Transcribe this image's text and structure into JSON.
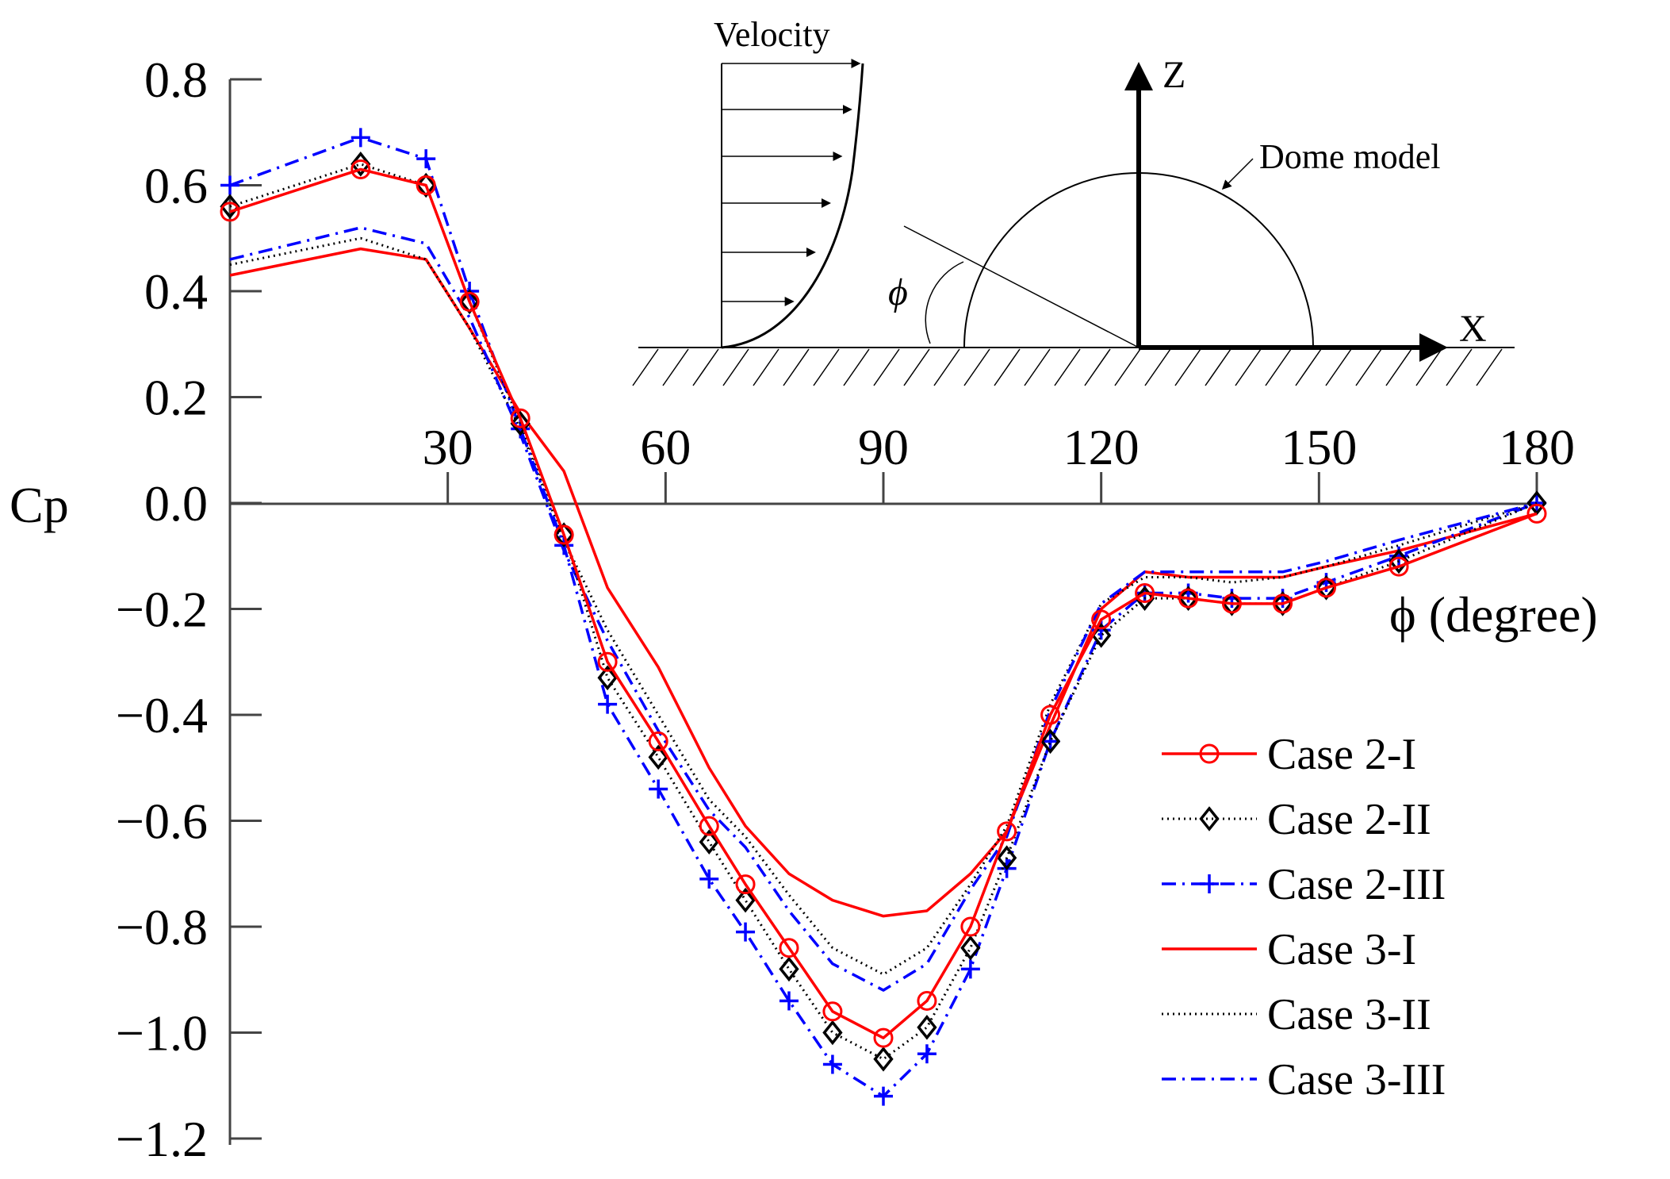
{
  "chart_data": {
    "type": "line",
    "title": "",
    "ylabel": "Cp",
    "xlabel": "ϕ (degree)",
    "xlim": [
      0,
      180
    ],
    "ylim": [
      -1.2,
      0.8
    ],
    "xticks": [
      "30",
      "60",
      "90",
      "120",
      "150",
      "180"
    ],
    "xtick_values": [
      30,
      60,
      90,
      120,
      150,
      180
    ],
    "yticks": [
      "0.8",
      "0.6",
      "0.4",
      "0.2",
      "0.0",
      "−0.2",
      "−0.4",
      "−0.6",
      "−0.8",
      "−1.0",
      "−1.2"
    ],
    "ytick_values": [
      0.8,
      0.6,
      0.4,
      0.2,
      0.0,
      -0.2,
      -0.4,
      -0.6,
      -0.8,
      -1.0,
      -1.2
    ],
    "legend_position": "bottom-right",
    "series": [
      {
        "name": "Case 2-I",
        "color": "#ff0000",
        "dash": "solid",
        "marker": "circle",
        "x": [
          0,
          18,
          27,
          33,
          40,
          46,
          52,
          59,
          66,
          71,
          77,
          83,
          90,
          96,
          102,
          107,
          113,
          120,
          126,
          132,
          138,
          145,
          151,
          161,
          180
        ],
        "y": [
          0.55,
          0.63,
          0.6,
          0.38,
          0.16,
          -0.06,
          -0.3,
          -0.45,
          -0.61,
          -0.72,
          -0.84,
          -0.96,
          -1.01,
          -0.94,
          -0.8,
          -0.62,
          -0.4,
          -0.22,
          -0.17,
          -0.18,
          -0.19,
          -0.19,
          -0.16,
          -0.12,
          -0.02
        ]
      },
      {
        "name": "Case 2-II",
        "color": "#000000",
        "dash": "dotted",
        "marker": "diamond",
        "x": [
          0,
          18,
          27,
          33,
          40,
          46,
          52,
          59,
          66,
          71,
          77,
          83,
          90,
          96,
          102,
          107,
          113,
          120,
          126,
          132,
          138,
          145,
          151,
          161,
          180
        ],
        "y": [
          0.56,
          0.64,
          0.6,
          0.38,
          0.15,
          -0.06,
          -0.33,
          -0.48,
          -0.64,
          -0.75,
          -0.88,
          -1.0,
          -1.05,
          -0.99,
          -0.84,
          -0.67,
          -0.45,
          -0.25,
          -0.18,
          -0.18,
          -0.19,
          -0.19,
          -0.16,
          -0.11,
          0.0
        ]
      },
      {
        "name": "Case 2-III",
        "color": "#0000ff",
        "dash": "dashdot",
        "marker": "plus",
        "x": [
          0,
          18,
          27,
          33,
          40,
          46,
          52,
          59,
          66,
          71,
          77,
          83,
          90,
          96,
          102,
          107,
          113,
          120,
          126,
          132,
          138,
          145,
          151,
          161,
          180
        ],
        "y": [
          0.6,
          0.69,
          0.65,
          0.4,
          0.14,
          -0.08,
          -0.38,
          -0.54,
          -0.71,
          -0.81,
          -0.94,
          -1.06,
          -1.12,
          -1.04,
          -0.88,
          -0.69,
          -0.45,
          -0.24,
          -0.17,
          -0.17,
          -0.18,
          -0.18,
          -0.15,
          -0.1,
          0.0
        ]
      },
      {
        "name": "Case 3-I",
        "color": "#ff0000",
        "dash": "solid",
        "marker": "none",
        "x": [
          0,
          18,
          27,
          33,
          40,
          46,
          52,
          59,
          66,
          71,
          77,
          83,
          90,
          96,
          102,
          107,
          113,
          120,
          126,
          132,
          138,
          145,
          151,
          161,
          180
        ],
        "y": [
          0.43,
          0.48,
          0.46,
          0.33,
          0.17,
          0.06,
          -0.16,
          -0.31,
          -0.5,
          -0.61,
          -0.7,
          -0.75,
          -0.78,
          -0.77,
          -0.7,
          -0.62,
          -0.42,
          -0.2,
          -0.13,
          -0.14,
          -0.14,
          -0.14,
          -0.12,
          -0.09,
          -0.02
        ]
      },
      {
        "name": "Case 3-II",
        "color": "#000000",
        "dash": "dotted",
        "marker": "none",
        "x": [
          0,
          18,
          27,
          33,
          40,
          46,
          52,
          59,
          66,
          71,
          77,
          83,
          90,
          96,
          102,
          107,
          113,
          120,
          126,
          132,
          138,
          145,
          151,
          161,
          180
        ],
        "y": [
          0.45,
          0.5,
          0.46,
          0.33,
          0.14,
          -0.07,
          -0.24,
          -0.4,
          -0.56,
          -0.63,
          -0.74,
          -0.84,
          -0.89,
          -0.84,
          -0.72,
          -0.61,
          -0.38,
          -0.19,
          -0.14,
          -0.14,
          -0.15,
          -0.14,
          -0.12,
          -0.08,
          0.0
        ]
      },
      {
        "name": "Case 3-III",
        "color": "#0000ff",
        "dash": "dashdot",
        "marker": "none",
        "x": [
          0,
          18,
          27,
          33,
          40,
          46,
          52,
          59,
          66,
          71,
          77,
          83,
          90,
          96,
          102,
          107,
          113,
          120,
          126,
          132,
          138,
          145,
          151,
          161,
          180
        ],
        "y": [
          0.46,
          0.52,
          0.49,
          0.35,
          0.13,
          -0.09,
          -0.26,
          -0.43,
          -0.58,
          -0.65,
          -0.77,
          -0.87,
          -0.92,
          -0.87,
          -0.73,
          -0.63,
          -0.39,
          -0.19,
          -0.13,
          -0.13,
          -0.13,
          -0.13,
          -0.11,
          -0.07,
          0.0
        ]
      }
    ]
  },
  "inset": {
    "velocity_label": "Velocity",
    "z_label": "Z",
    "x_label": "X",
    "dome_label": "Dome model",
    "phi_label": "ϕ"
  }
}
